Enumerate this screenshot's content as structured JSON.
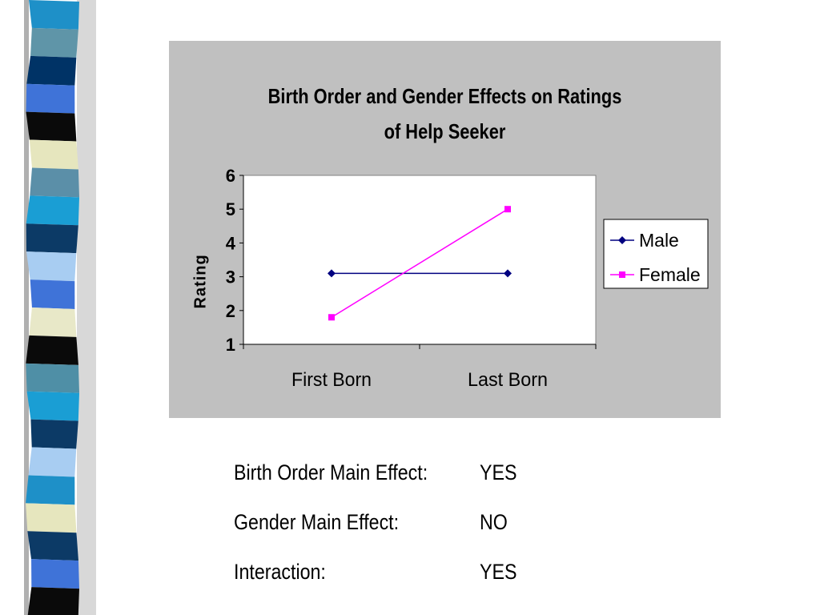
{
  "decor": {
    "stripe_colors": [
      "#1e90c8",
      "#5f95a8",
      "#003366",
      "#3f73d8",
      "#0a0a0a",
      "#e6e6be",
      "#5b8fa8",
      "#1a9ed4",
      "#0c3a66",
      "#a8cdf2",
      "#3f73d8",
      "#e8e8c8",
      "#0a0a0a",
      "#4f8fa6",
      "#1a9ed4",
      "#0c3a66",
      "#a8cdf2",
      "#1e90c8",
      "#e6e6be",
      "#0c3a66",
      "#3f73d8",
      "#0a0a0a"
    ]
  },
  "chart_data": {
    "type": "line",
    "title": "Birth Order and Gender Effects on Ratings of Help Seeker",
    "title_lines": [
      "Birth Order and Gender Effects on Ratings",
      "of Help Seeker"
    ],
    "ylabel": "Rating",
    "xlabel": "",
    "categories": [
      "First Born",
      "Last Born"
    ],
    "ylim": [
      1,
      6
    ],
    "yticks": [
      "1",
      "2",
      "3",
      "4",
      "5",
      "6"
    ],
    "grid": false,
    "legend_position": "right",
    "series": [
      {
        "name": "Male",
        "values": [
          3.1,
          3.1
        ],
        "color": "#000080",
        "marker": "diamond"
      },
      {
        "name": "Female",
        "values": [
          1.8,
          5.0
        ],
        "color": "#ff00ff",
        "marker": "square"
      }
    ]
  },
  "summary": {
    "rows": [
      {
        "label": "Birth Order Main Effect:",
        "value": "YES"
      },
      {
        "label": "Gender Main Effect:",
        "value": "NO"
      },
      {
        "label": "Interaction:",
        "value": "YES"
      }
    ]
  }
}
